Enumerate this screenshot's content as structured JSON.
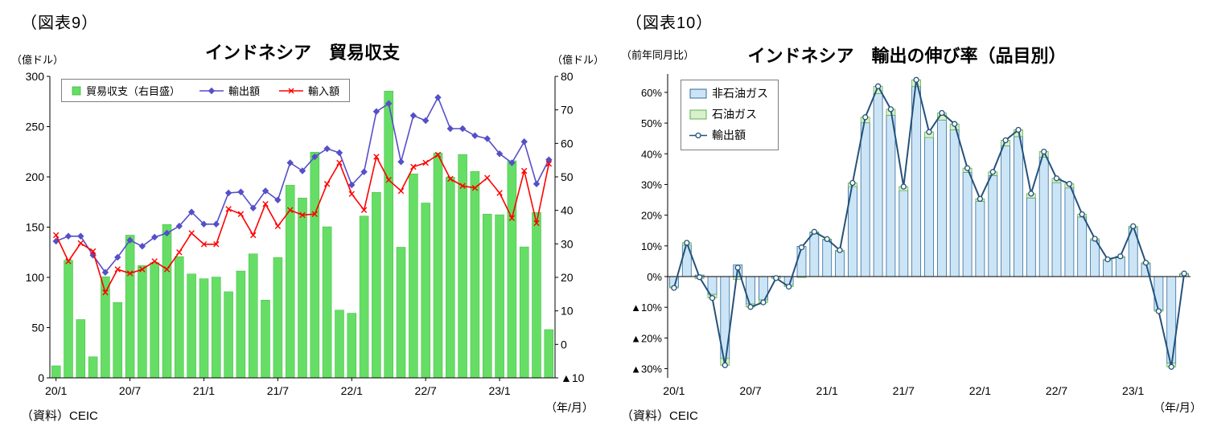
{
  "figure9": {
    "figure_label": "（図表9）",
    "title": "インドネシア　貿易収支",
    "left_unit": "（億ドル）",
    "right_unit": "（億ドル）",
    "x_unit": "（年/月）",
    "source": "（資料）CEIC",
    "legend": {
      "balance": "貿易収支（右目盛）",
      "exports": "輸出額",
      "imports": "輸入額"
    }
  },
  "figure10": {
    "figure_label": "（図表10）",
    "title": "インドネシア　輸出の伸び率（品目別）",
    "y_unit": "（前年同月比）",
    "x_unit": "（年/月）",
    "source": "（資料）CEIC",
    "legend": {
      "non_oil_gas": "非石油ガス",
      "oil_gas": "石油ガス",
      "exports": "輸出額"
    }
  },
  "chart_data": [
    {
      "type": "bar+line",
      "title": "インドネシア　貿易収支",
      "n_points": 41,
      "x_tick_labels": [
        "20/1",
        "20/7",
        "21/1",
        "21/7",
        "22/1",
        "22/7",
        "23/1"
      ],
      "x_tick_indices": [
        0,
        6,
        12,
        18,
        24,
        30,
        36
      ],
      "x_unit": "（年/月）",
      "grid": false,
      "legend_position": "top-left-horizontal",
      "left_axis": {
        "title": "（億ドル）",
        "min": 0,
        "max": 300,
        "ticks": [
          {
            "v": 300,
            "label": "300"
          },
          {
            "v": 250,
            "label": "250"
          },
          {
            "v": 200,
            "label": "200"
          },
          {
            "v": 150,
            "label": "150"
          },
          {
            "v": 100,
            "label": "100"
          },
          {
            "v": 50,
            "label": "50"
          },
          {
            "v": 0,
            "label": "0"
          }
        ]
      },
      "right_axis": {
        "title": "（億ドル）",
        "min": -10,
        "max": 80,
        "ticks": [
          {
            "v": 80,
            "label": "80"
          },
          {
            "v": 70,
            "label": "70"
          },
          {
            "v": 60,
            "label": "60"
          },
          {
            "v": 50,
            "label": "50"
          },
          {
            "v": 40,
            "label": "40"
          },
          {
            "v": 30,
            "label": "30"
          },
          {
            "v": 20,
            "label": "20"
          },
          {
            "v": 10,
            "label": "10"
          },
          {
            "v": 0,
            "label": "0"
          },
          {
            "v": -10,
            "label": "▲10"
          }
        ]
      },
      "series": [
        {
          "name": "貿易収支（右目盛）",
          "type": "bar",
          "axis": "right",
          "color": "#66DE66",
          "border": "#3CB83C",
          "values": [
            -6.4,
            25.1,
            7.4,
            -3.7,
            20.2,
            12.5,
            32.6,
            23.5,
            24.4,
            35.8,
            26.2,
            21.0,
            19.6,
            20.1,
            15.7,
            21.9,
            27.0,
            13.2,
            25.9,
            47.5,
            43.7,
            57.4,
            35.1,
            10.2,
            9.3,
            38.3,
            45.4,
            75.6,
            29.0,
            50.9,
            42.2,
            57.1,
            49.9,
            56.7,
            51.6,
            38.9,
            38.7,
            54.8,
            29.1,
            39.4,
            4.4
          ]
        },
        {
          "name": "輸出額",
          "type": "line",
          "marker": "diamond",
          "axis": "left",
          "color": "#554FC8",
          "values": [
            136,
            141,
            141,
            122,
            105,
            120,
            137,
            131,
            140,
            144,
            151,
            165,
            153,
            153,
            184,
            185,
            169,
            186,
            177,
            214,
            206,
            220,
            228,
            224,
            192,
            205,
            265,
            273,
            215,
            261,
            256,
            279,
            248,
            248,
            241,
            238,
            223,
            214,
            235,
            193,
            217
          ]
        },
        {
          "name": "輸入額",
          "type": "line",
          "marker": "x",
          "axis": "left",
          "color": "#FF0000",
          "values": [
            142,
            116,
            134,
            126,
            85,
            108,
            104,
            108,
            116,
            108,
            125,
            144,
            133,
            133,
            168,
            163,
            142,
            173,
            151,
            167,
            162,
            163,
            193,
            214,
            183,
            167,
            220,
            197,
            186,
            210,
            214,
            222,
            198,
            191,
            189,
            199,
            184,
            159,
            206,
            154,
            213
          ]
        }
      ]
    },
    {
      "type": "stacked-bar+line",
      "title": "インドネシア　輸出の伸び率（品目別）",
      "n_points": 41,
      "x_tick_labels": [
        "20/1",
        "20/7",
        "21/1",
        "21/7",
        "22/1",
        "22/7",
        "23/1"
      ],
      "x_tick_indices": [
        0,
        6,
        12,
        18,
        24,
        30,
        36
      ],
      "x_unit": "（年/月）",
      "grid": false,
      "legend_position": "top-left-vertical",
      "y_axis": {
        "title": "（前年同月比）",
        "min": -33,
        "max": 66,
        "ticks": [
          {
            "v": 60,
            "label": "60%"
          },
          {
            "v": 50,
            "label": "50%"
          },
          {
            "v": 40,
            "label": "40%"
          },
          {
            "v": 30,
            "label": "30%"
          },
          {
            "v": 20,
            "label": "20%"
          },
          {
            "v": 10,
            "label": "10%"
          },
          {
            "v": 0,
            "label": "0%"
          },
          {
            "v": -10,
            "label": "▲10%"
          },
          {
            "v": -20,
            "label": "▲20%"
          },
          {
            "v": -30,
            "label": "▲30%"
          }
        ]
      },
      "series": [
        {
          "name": "非石油ガス",
          "type": "bar",
          "color": "#CCE5F6",
          "border": "#336B9C",
          "values": [
            -3.4,
            10.2,
            0.5,
            -5.8,
            -26.7,
            3.8,
            -8.9,
            -7.6,
            0.1,
            -2.8,
            9.8,
            14.3,
            11.9,
            8.2,
            29.3,
            50.1,
            59.6,
            52.5,
            28.0,
            61.9,
            45.3,
            51.0,
            47.8,
            33.9,
            24.5,
            32.9,
            42.6,
            45.6,
            25.6,
            38.9,
            30.6,
            28.9,
            19.4,
            11.8,
            5.2,
            6.2,
            15.9,
            4.2,
            -10.9,
            -28.2,
            0.9
          ]
        },
        {
          "name": "石油ガス",
          "type": "bar",
          "color": "#D8F0CC",
          "border": "#5FAF50",
          "values": [
            -0.3,
            0.8,
            -0.7,
            -1.2,
            -2.2,
            -0.9,
            -1.0,
            -0.8,
            -0.6,
            -0.5,
            -0.3,
            0.3,
            0.3,
            0.4,
            1.2,
            1.8,
            2.4,
            2.0,
            1.3,
            2.2,
            1.8,
            2.3,
            1.9,
            1.4,
            0.8,
            1.2,
            1.8,
            2.2,
            1.4,
            1.8,
            1.4,
            1.3,
            0.9,
            0.5,
            0.4,
            0.4,
            0.5,
            0.3,
            -0.4,
            -1.2,
            0.1
          ]
        },
        {
          "name": "輸出額",
          "type": "line",
          "marker": "circle",
          "color": "#24527B",
          "values": [
            -3.7,
            11.0,
            -0.2,
            -7.0,
            -28.9,
            2.9,
            -9.9,
            -8.4,
            -0.5,
            -3.3,
            9.5,
            14.6,
            12.2,
            8.6,
            30.5,
            51.9,
            62.0,
            54.5,
            29.3,
            64.1,
            47.1,
            53.3,
            49.7,
            35.3,
            25.3,
            34.1,
            44.4,
            47.8,
            27.0,
            40.7,
            32.0,
            30.2,
            20.3,
            12.3,
            5.6,
            6.6,
            16.4,
            4.5,
            -11.3,
            -29.4,
            1.0
          ]
        }
      ]
    }
  ]
}
